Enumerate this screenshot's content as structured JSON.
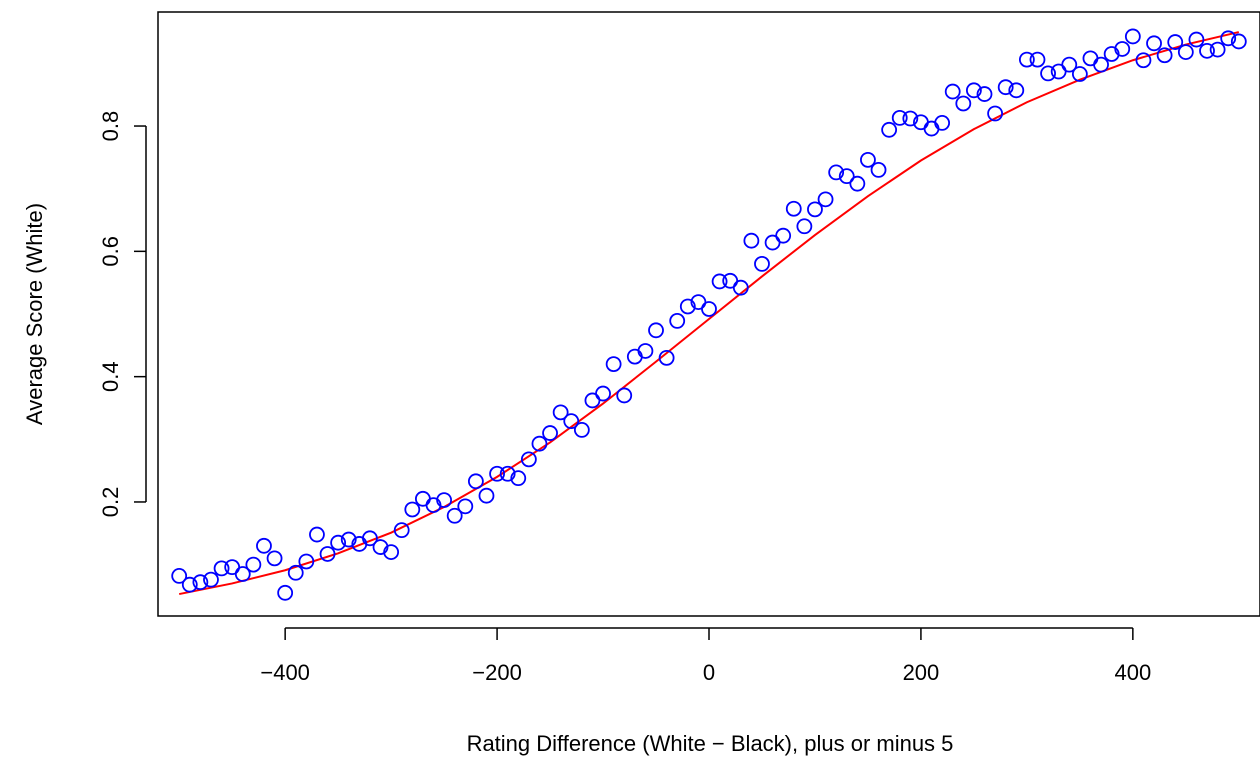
{
  "chart_data": {
    "type": "scatter",
    "title": "",
    "xlabel": "Rating Difference (White − Black), plus or minus 5",
    "ylabel": "Average Score (White)",
    "xlim": [
      -520,
      520
    ],
    "ylim": [
      0.018,
      0.982
    ],
    "xticks": [
      -400,
      -200,
      0,
      200,
      400
    ],
    "xtick_labels": [
      "−400",
      "−200",
      "0",
      "200",
      "400"
    ],
    "yticks": [
      0.2,
      0.4,
      0.6,
      0.8
    ],
    "ytick_labels": [
      "0.2",
      "0.4",
      "0.6",
      "0.8"
    ],
    "grid": false,
    "legend": "none",
    "colors": {
      "points": "#0000ff",
      "curve": "#ff0000",
      "axes": "#000000"
    },
    "series": [
      {
        "type": "scatter",
        "x": [
          -500,
          -490,
          -480,
          -470,
          -460,
          -450,
          -440,
          -430,
          -420,
          -410,
          -400,
          -390,
          -380,
          -370,
          -360,
          -350,
          -340,
          -330,
          -320,
          -310,
          -300,
          -290,
          -280,
          -270,
          -260,
          -250,
          -240,
          -230,
          -220,
          -210,
          -200,
          -190,
          -180,
          -170,
          -160,
          -150,
          -140,
          -130,
          -120,
          -110,
          -100,
          -90,
          -80,
          -70,
          -60,
          -50,
          -40,
          -30,
          -20,
          -10,
          0,
          10,
          20,
          30,
          40,
          50,
          60,
          70,
          80,
          90,
          100,
          110,
          120,
          130,
          140,
          150,
          160,
          170,
          180,
          190,
          200,
          210,
          220,
          230,
          240,
          250,
          260,
          270,
          280,
          290,
          300,
          310,
          320,
          330,
          340,
          350,
          360,
          370,
          380,
          390,
          400,
          410,
          420,
          430,
          440,
          450,
          460,
          470,
          480,
          490,
          500
        ],
        "y": [
          0.082,
          0.068,
          0.072,
          0.076,
          0.094,
          0.096,
          0.085,
          0.1,
          0.13,
          0.11,
          0.055,
          0.087,
          0.105,
          0.148,
          0.117,
          0.135,
          0.14,
          0.133,
          0.142,
          0.128,
          0.12,
          0.155,
          0.188,
          0.205,
          0.195,
          0.203,
          0.178,
          0.193,
          0.233,
          0.21,
          0.245,
          0.245,
          0.238,
          0.268,
          0.293,
          0.31,
          0.343,
          0.329,
          0.315,
          0.362,
          0.373,
          0.42,
          0.37,
          0.432,
          0.441,
          0.474,
          0.43,
          0.489,
          0.512,
          0.519,
          0.508,
          0.552,
          0.553,
          0.542,
          0.617,
          0.58,
          0.614,
          0.625,
          0.668,
          0.64,
          0.667,
          0.683,
          0.726,
          0.72,
          0.708,
          0.746,
          0.73,
          0.794,
          0.813,
          0.812,
          0.806,
          0.796,
          0.805,
          0.855,
          0.836,
          0.857,
          0.851,
          0.82,
          0.862,
          0.857,
          0.906,
          0.906,
          0.884,
          0.887,
          0.898,
          0.883,
          0.908,
          0.898,
          0.915,
          0.923,
          0.943,
          0.905,
          0.932,
          0.913,
          0.934,
          0.918,
          0.938,
          0.92,
          0.922,
          0.94,
          0.935
        ]
      },
      {
        "type": "line",
        "x": [
          -500,
          -450,
          -400,
          -350,
          -300,
          -250,
          -200,
          -150,
          -100,
          -50,
          0,
          50,
          100,
          150,
          200,
          250,
          300,
          350,
          400,
          450,
          500
        ],
        "y": [
          0.053,
          0.07,
          0.091,
          0.118,
          0.151,
          0.192,
          0.24,
          0.295,
          0.357,
          0.424,
          0.492,
          0.56,
          0.626,
          0.688,
          0.745,
          0.795,
          0.838,
          0.874,
          0.905,
          0.93,
          0.95
        ]
      }
    ]
  }
}
